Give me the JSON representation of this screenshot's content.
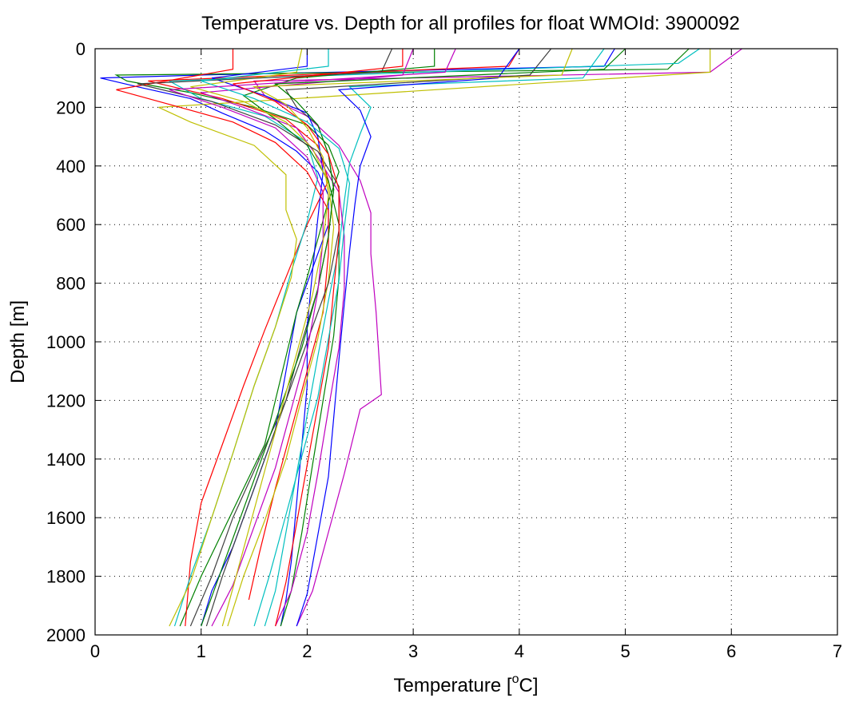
{
  "chart_data": {
    "type": "line",
    "title": "Temperature vs. Depth for all profiles for float WMOId: 3900092",
    "xlabel_main": "Temperature [",
    "xlabel_sup": "o",
    "xlabel_end": "C]",
    "ylabel": "Depth [m]",
    "xlim": [
      0,
      7
    ],
    "ylim": [
      0,
      2000
    ],
    "y_reversed": true,
    "grid": true,
    "x_ticks": [
      "0",
      "1",
      "2",
      "3",
      "4",
      "5",
      "6",
      "7"
    ],
    "y_ticks": [
      "0",
      "200",
      "400",
      "600",
      "800",
      "1000",
      "1200",
      "1400",
      "1600",
      "1800",
      "2000"
    ],
    "colors": [
      "#0000ff",
      "#008000",
      "#ff0000",
      "#00bfbf",
      "#bf00bf",
      "#bfbf00",
      "#404040"
    ],
    "series": [
      {
        "x": [
          4.9,
          4.8,
          1.0,
          0.05,
          0.4,
          0.9,
          1.2,
          1.6,
          1.9,
          2.1,
          2.2,
          2.2,
          2.1,
          2.0,
          1.9,
          1.8,
          1.7,
          1.5,
          1.3,
          1.1,
          1.0
        ],
        "y": [
          0,
          60,
          90,
          100,
          130,
          170,
          220,
          280,
          350,
          420,
          500,
          600,
          700,
          800,
          900,
          1100,
          1300,
          1500,
          1700,
          1850,
          1970
        ]
      },
      {
        "x": [
          5.6,
          5.4,
          0.2,
          0.3,
          0.9,
          1.5,
          2.0,
          2.2,
          2.3,
          2.2,
          2.1,
          2.0,
          1.9,
          1.8,
          1.7,
          1.6,
          1.4,
          1.2,
          1.0,
          0.8
        ],
        "y": [
          0,
          70,
          90,
          110,
          150,
          200,
          260,
          330,
          420,
          520,
          650,
          780,
          900,
          1050,
          1200,
          1350,
          1500,
          1650,
          1800,
          1970
        ]
      },
      {
        "x": [
          4.0,
          3.9,
          0.5,
          1.2,
          1.8,
          2.1,
          2.2,
          2.0,
          1.8,
          1.6,
          1.4,
          1.2,
          1.0,
          0.9,
          0.85
        ],
        "y": [
          0,
          60,
          110,
          170,
          240,
          330,
          450,
          600,
          780,
          960,
          1150,
          1350,
          1550,
          1750,
          1970
        ]
      },
      {
        "x": [
          5.7,
          5.5,
          0.7,
          1.0,
          1.6,
          2.0,
          2.1,
          2.0,
          1.85,
          1.7,
          1.5,
          1.3,
          1.1,
          0.9,
          0.75
        ],
        "y": [
          0,
          50,
          110,
          170,
          230,
          320,
          440,
          590,
          760,
          950,
          1150,
          1380,
          1600,
          1800,
          1970
        ]
      },
      {
        "x": [
          6.1,
          5.8,
          1.5,
          1.6,
          2.0,
          2.3,
          2.5,
          2.6,
          2.6,
          2.65,
          2.7,
          2.5,
          2.35,
          2.2,
          2.05,
          1.9
        ],
        "y": [
          0,
          80,
          110,
          160,
          230,
          330,
          450,
          560,
          700,
          900,
          1180,
          1230,
          1450,
          1650,
          1850,
          1970
        ]
      },
      {
        "x": [
          5.8,
          5.8,
          0.6,
          0.9,
          1.5,
          1.8,
          1.8,
          1.9,
          1.85,
          1.7,
          1.5,
          1.3,
          1.1,
          0.9,
          0.7
        ],
        "y": [
          0,
          80,
          200,
          250,
          330,
          430,
          550,
          650,
          780,
          950,
          1150,
          1380,
          1600,
          1820,
          1970
        ]
      },
      {
        "x": [
          4.3,
          4.1,
          1.8,
          1.9,
          2.1,
          2.2,
          2.25,
          2.2,
          2.1,
          1.95,
          1.8,
          1.6,
          1.4,
          1.2,
          1.05
        ],
        "y": [
          0,
          90,
          140,
          200,
          260,
          360,
          480,
          640,
          820,
          1000,
          1200,
          1400,
          1600,
          1800,
          1970
        ]
      },
      {
        "x": [
          2.0,
          2.0,
          1.1,
          1.6,
          2.0,
          2.1,
          2.15,
          2.1,
          2.05,
          2.0,
          2.0,
          1.95,
          1.9,
          1.85,
          1.8,
          1.75
        ],
        "y": [
          0,
          60,
          100,
          160,
          220,
          300,
          420,
          580,
          760,
          950,
          1150,
          1350,
          1550,
          1750,
          1880,
          1970
        ]
      },
      {
        "x": [
          3.2,
          3.2,
          1.9,
          1.4,
          1.7,
          2.0,
          2.2,
          2.3,
          2.3,
          2.25,
          2.15,
          2.05,
          1.95,
          1.85,
          1.75
        ],
        "y": [
          0,
          60,
          100,
          160,
          240,
          330,
          450,
          600,
          780,
          980,
          1200,
          1420,
          1650,
          1850,
          1970
        ]
      },
      {
        "x": [
          1.3,
          1.3,
          0.2,
          0.7,
          1.3,
          1.7,
          2.0,
          2.2,
          2.2,
          2.15,
          2.0,
          1.85,
          1.7,
          1.55,
          1.45
        ],
        "y": [
          0,
          70,
          140,
          190,
          250,
          320,
          420,
          550,
          700,
          900,
          1100,
          1300,
          1500,
          1720,
          1880
        ]
      },
      {
        "x": [
          4.8,
          4.6,
          2.4,
          2.6,
          2.5,
          2.4,
          2.35,
          2.3,
          2.2,
          2.1,
          2.0,
          1.9,
          1.8,
          1.7,
          1.6
        ],
        "y": [
          0,
          100,
          130,
          200,
          290,
          390,
          520,
          680,
          860,
          1050,
          1250,
          1450,
          1650,
          1850,
          1970
        ]
      },
      {
        "x": [
          3.0,
          2.9,
          1.0,
          1.4,
          1.9,
          2.1,
          2.3,
          2.35,
          2.35,
          2.3,
          2.2,
          2.1,
          2.0,
          1.85,
          1.7
        ],
        "y": [
          0,
          90,
          150,
          200,
          270,
          370,
          490,
          640,
          820,
          1020,
          1230,
          1450,
          1650,
          1850,
          1970
        ]
      },
      {
        "x": [
          1.95,
          1.9,
          0.9,
          1.4,
          1.8,
          2.05,
          2.2,
          2.25,
          2.2,
          2.1,
          1.95,
          1.8,
          1.6,
          1.4,
          1.25
        ],
        "y": [
          0,
          80,
          130,
          180,
          250,
          340,
          460,
          610,
          790,
          990,
          1190,
          1400,
          1610,
          1800,
          1970
        ]
      },
      {
        "x": [
          2.8,
          2.7,
          0.4,
          1.1,
          1.7,
          2.1,
          2.3,
          2.3,
          2.2,
          2.0,
          1.8,
          1.55,
          1.3,
          1.1,
          0.9
        ],
        "y": [
          0,
          80,
          120,
          180,
          260,
          350,
          470,
          620,
          800,
          1000,
          1200,
          1400,
          1600,
          1800,
          1970
        ]
      },
      {
        "x": [
          4.0,
          3.8,
          2.3,
          2.5,
          2.6,
          2.5,
          2.45,
          2.4,
          2.35,
          2.3,
          2.25,
          2.2,
          2.1,
          2.0,
          1.9
        ],
        "y": [
          0,
          100,
          140,
          210,
          300,
          400,
          530,
          690,
          870,
          1060,
          1260,
          1460,
          1660,
          1860,
          1970
        ]
      },
      {
        "x": [
          5.0,
          4.8,
          1.7,
          1.9,
          2.1,
          2.2,
          2.25,
          2.2,
          2.1,
          1.95,
          1.75,
          1.55,
          1.35,
          1.15,
          1.0
        ],
        "y": [
          0,
          70,
          120,
          180,
          260,
          360,
          480,
          640,
          820,
          1020,
          1220,
          1420,
          1620,
          1820,
          1970
        ]
      },
      {
        "x": [
          2.9,
          2.9,
          1.3,
          1.7,
          2.0,
          2.2,
          2.3,
          2.3,
          2.25,
          2.2,
          2.1,
          2.0,
          1.9,
          1.8,
          1.7
        ],
        "y": [
          0,
          60,
          120,
          180,
          260,
          360,
          480,
          640,
          820,
          1020,
          1220,
          1420,
          1620,
          1820,
          1970
        ]
      },
      {
        "x": [
          2.2,
          2.2,
          1.0,
          1.5,
          2.0,
          2.3,
          2.4,
          2.35,
          2.3,
          2.2,
          2.1,
          1.95,
          1.8,
          1.65,
          1.5
        ],
        "y": [
          0,
          60,
          110,
          170,
          250,
          340,
          460,
          610,
          790,
          990,
          1190,
          1390,
          1590,
          1790,
          1970
        ]
      },
      {
        "x": [
          3.4,
          3.3,
          0.7,
          1.2,
          1.7,
          2.0,
          2.15,
          2.15,
          2.1,
          2.0,
          1.85,
          1.7,
          1.5,
          1.3,
          1.1
        ],
        "y": [
          0,
          80,
          140,
          200,
          270,
          370,
          490,
          650,
          830,
          1030,
          1230,
          1430,
          1630,
          1830,
          1970
        ]
      },
      {
        "x": [
          4.5,
          4.4,
          1.5,
          1.8,
          2.0,
          2.15,
          2.2,
          2.15,
          2.05,
          1.9,
          1.75,
          1.6,
          1.45,
          1.3,
          1.2
        ],
        "y": [
          0,
          90,
          130,
          190,
          270,
          370,
          500,
          660,
          840,
          1040,
          1240,
          1440,
          1640,
          1840,
          1970
        ]
      }
    ]
  }
}
